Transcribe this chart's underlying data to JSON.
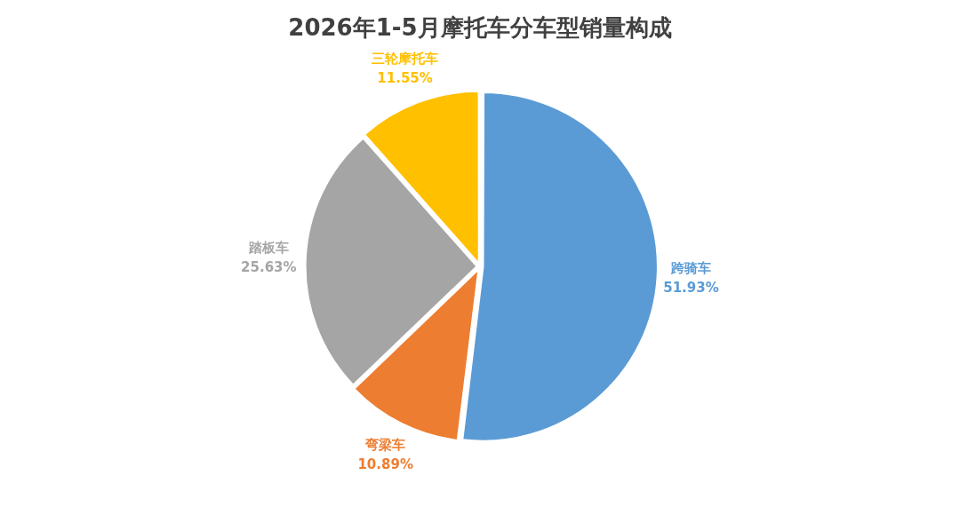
{
  "chart_data": {
    "type": "pie",
    "title": "2026年1-5月摩托车分车型销量构成",
    "categories": [
      "跨骑车",
      "弯梁车",
      "踏板车",
      "三轮摩托车"
    ],
    "values": [
      51.93,
      10.89,
      25.63,
      11.55
    ],
    "colors": [
      "#5b9bd5",
      "#ed7d31",
      "#a5a5a5",
      "#ffc000"
    ],
    "value_labels": [
      "51.93%",
      "10.89%",
      "25.63%",
      "11.55%"
    ],
    "legend": false
  }
}
